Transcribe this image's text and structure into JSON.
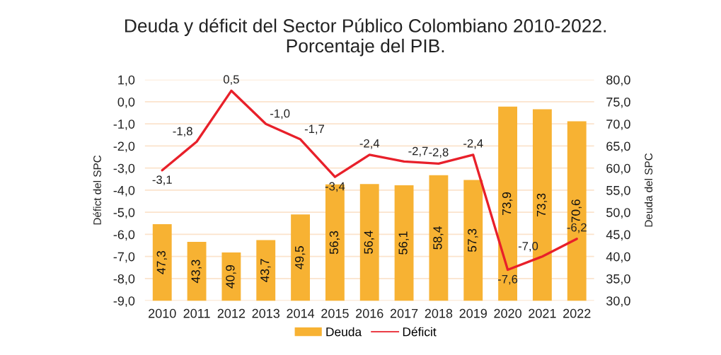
{
  "chart_data": {
    "type": "bar",
    "title": "Deuda y déficit del Sector Público Colombiano 2010-2022.\nPorcentaje del PIB.",
    "categories": [
      "2010",
      "2011",
      "2012",
      "2013",
      "2014",
      "2015",
      "2016",
      "2017",
      "2018",
      "2019",
      "2020",
      "2021",
      "2022"
    ],
    "series": [
      {
        "name": "Deuda",
        "axis": "y2",
        "color": "#f7b233",
        "values": [
          47.3,
          43.3,
          40.9,
          43.7,
          49.5,
          56.3,
          56.4,
          56.1,
          58.4,
          57.3,
          73.9,
          73.3,
          70.6
        ],
        "value_labels": [
          "47,3",
          "43,3",
          "40,9",
          "43,7",
          "49,5",
          "56,3",
          "56,4",
          "56,1",
          "58,4",
          "57,3",
          "73,9",
          "73,3",
          "70,6"
        ]
      },
      {
        "name": "Déficit",
        "type": "line",
        "color": "#e8202a",
        "values": [
          -3.1,
          -1.8,
          0.5,
          -1.0,
          -1.7,
          -3.4,
          -2.4,
          -2.7,
          -2.8,
          -2.4,
          -7.6,
          -7.0,
          -6.2
        ],
        "value_labels": [
          "-3,1",
          "-1,8",
          "0,5",
          "-1,0",
          "-1,7",
          "-3,4",
          "-2,4",
          "-2,7",
          "-2,8",
          "-2,4",
          "-7,6",
          "-7,0",
          "-6,2"
        ]
      }
    ],
    "ylabel": "Défict del SPC",
    "y2label": "Deuda del SPC",
    "ylim": [
      -9,
      1
    ],
    "yticks": [
      {
        "value": -9,
        "label": "-9,0"
      },
      {
        "value": -8,
        "label": "-8,0"
      },
      {
        "value": -7,
        "label": "-7,0"
      },
      {
        "value": -6,
        "label": "-6,0"
      },
      {
        "value": -5,
        "label": "-5,0"
      },
      {
        "value": -4,
        "label": "-4,0"
      },
      {
        "value": -3,
        "label": "-3,0"
      },
      {
        "value": -2,
        "label": "-2,0"
      },
      {
        "value": -1,
        "label": "-1,0"
      },
      {
        "value": 0,
        "label": "0,0"
      },
      {
        "value": 1,
        "label": "1,0"
      }
    ],
    "y2lim": [
      30,
      80
    ],
    "y2ticks": [
      {
        "value": 30,
        "label": "30,0"
      },
      {
        "value": 35,
        "label": "35,0"
      },
      {
        "value": 40,
        "label": "40,0"
      },
      {
        "value": 45,
        "label": "45,0"
      },
      {
        "value": 50,
        "label": "50,0"
      },
      {
        "value": 55,
        "label": "55,0"
      },
      {
        "value": 60,
        "label": "60,0"
      },
      {
        "value": 65,
        "label": "65,0"
      },
      {
        "value": 70,
        "label": "70,0"
      },
      {
        "value": 75,
        "label": "75,0"
      },
      {
        "value": 80,
        "label": "80,0"
      }
    ],
    "grid": "y",
    "legend": "bottom"
  }
}
